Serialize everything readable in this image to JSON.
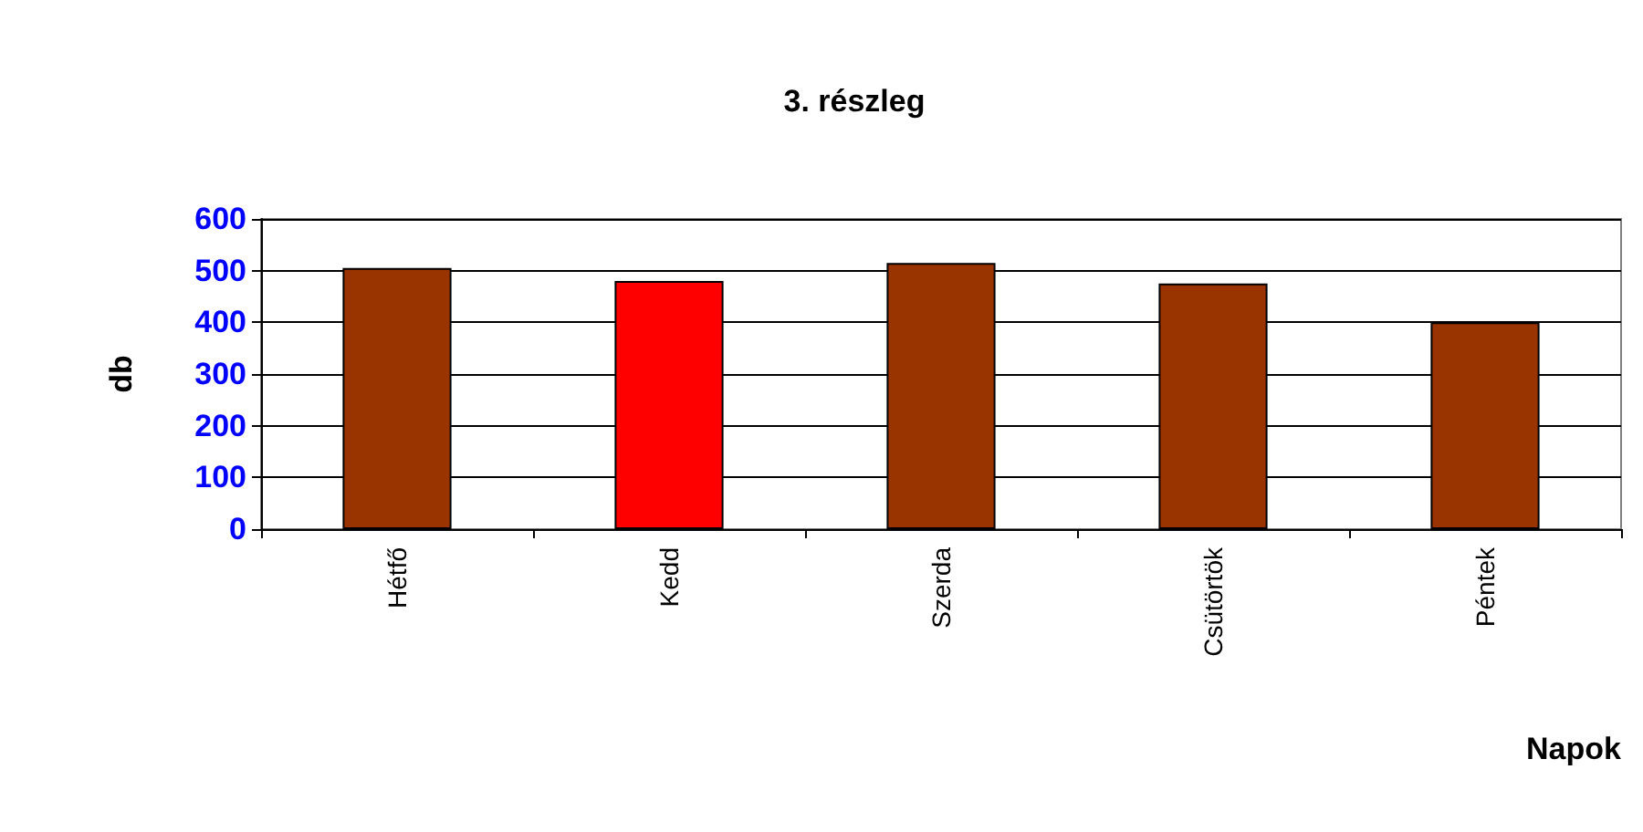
{
  "chart_data": {
    "type": "bar",
    "title": "3. részleg",
    "xlabel": "Napok",
    "ylabel": "db",
    "categories": [
      "Hétfő",
      "Kedd",
      "Szerda",
      "Csütörtök",
      "Péntek"
    ],
    "values": [
      505,
      480,
      515,
      475,
      400
    ],
    "colors": [
      "#993300",
      "#ff0000",
      "#993300",
      "#993300",
      "#993300"
    ],
    "ylim": [
      0,
      600
    ],
    "yticks": [
      0,
      100,
      200,
      300,
      400,
      500,
      600
    ],
    "grid": "y"
  }
}
